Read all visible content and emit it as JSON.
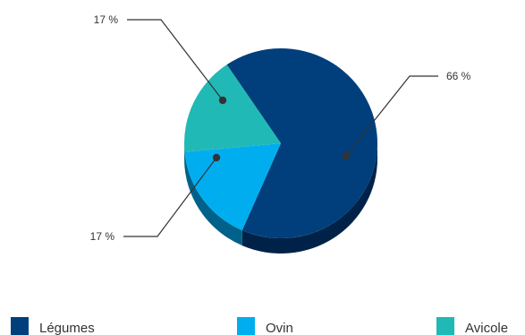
{
  "chart_data": {
    "type": "pie",
    "title": "",
    "slices": [
      {
        "name": "Légumes",
        "value": 66,
        "label": "66 %",
        "color": "#003f7c",
        "side_color": "#002248"
      },
      {
        "name": "Ovin",
        "value": 17,
        "label": "17 %",
        "color": "#00aeef",
        "side_color": "#00618a"
      },
      {
        "name": "Avicole",
        "value": 17,
        "label": "17 %",
        "color": "#21b9b5",
        "side_color": "#136a68"
      }
    ],
    "three_d": true,
    "legend_position": "bottom"
  },
  "leader_line_color": "#333333"
}
